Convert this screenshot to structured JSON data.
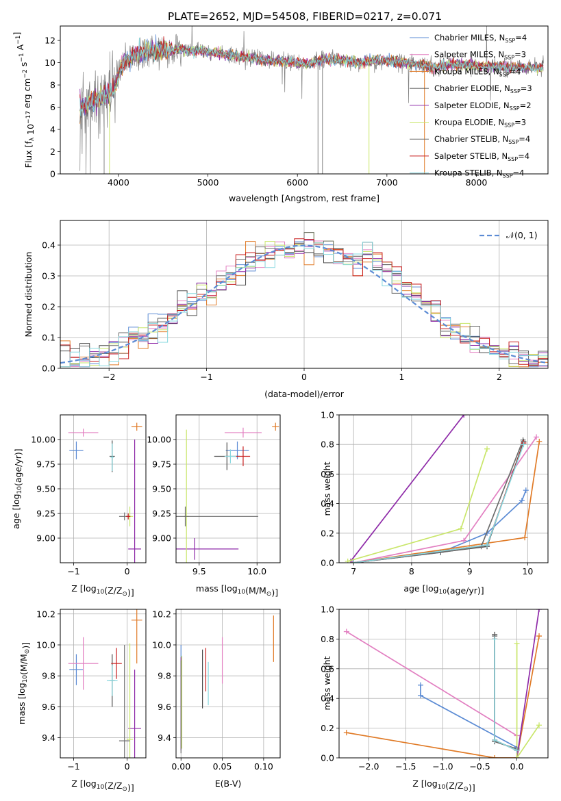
{
  "figure": {
    "title": "PLATE=2652, MJD=54508, FIBERID=0217, z=0.071"
  },
  "colors": {
    "Chabrier MILES": "#5b8bd4",
    "Salpeter MILES": "#e27fc1",
    "Kroupa MILES": "#e07a26",
    "Chabrier ELODIE": "#4d4d4d",
    "Salpeter ELODIE": "#8e2aa8",
    "Kroupa ELODIE": "#c9e66a",
    "Chabrier STELIB": "#6d6d6d",
    "Salpeter STELIB": "#c81e1e",
    "Kroupa STELIB": "#86d8df",
    "gaussian": "#5b8bd4",
    "data": "#808080"
  },
  "chart_data": [
    {
      "id": "spectrum",
      "type": "line",
      "title": "PLATE=2652, MJD=54508, FIBERID=0217, z=0.071",
      "xlabel": "wavelength [Angstrom, rest frame]",
      "ylabel": "Flux [f_λ 10^-17 erg cm^-2 s^-1 A^-1]",
      "xlim": [
        3350,
        8800
      ],
      "ylim": [
        0,
        13.3
      ],
      "xticks": [
        4000,
        5000,
        6000,
        7000,
        8000
      ],
      "yticks": [
        0,
        2,
        4,
        6,
        8,
        10,
        12
      ],
      "grid": false,
      "legend_position": "top-right",
      "legend": [
        {
          "label": "Chabrier MILES, N",
          "sub": "SSP",
          "suffix": "=4",
          "model": "Chabrier MILES"
        },
        {
          "label": "Salpeter MILES, N",
          "sub": "SSP",
          "suffix": "=3",
          "model": "Salpeter MILES"
        },
        {
          "label": "Kroupa MILES, N",
          "sub": "SSP",
          "suffix": "=4",
          "model": "Kroupa MILES"
        },
        {
          "label": "Chabrier ELODIE, N",
          "sub": "SSP",
          "suffix": "=3",
          "model": "Chabrier ELODIE"
        },
        {
          "label": "Salpeter ELODIE, N",
          "sub": "SSP",
          "suffix": "=2",
          "model": "Salpeter ELODIE"
        },
        {
          "label": "Kroupa ELODIE, N",
          "sub": "SSP",
          "suffix": "=3",
          "model": "Kroupa ELODIE"
        },
        {
          "label": "Chabrier STELIB, N",
          "sub": "SSP",
          "suffix": "=4",
          "model": "Chabrier STELIB"
        },
        {
          "label": "Salpeter STELIB, N",
          "sub": "SSP",
          "suffix": "=4",
          "model": "Salpeter STELIB"
        },
        {
          "label": "Kroupa STELIB, N",
          "sub": "SSP",
          "suffix": "=4",
          "model": "Kroupa STELIB"
        }
      ],
      "continuum": [
        [
          3570,
          6.0
        ],
        [
          3650,
          6.3
        ],
        [
          3800,
          6.7
        ],
        [
          3950,
          7.6
        ],
        [
          4050,
          10.0
        ],
        [
          4150,
          10.6
        ],
        [
          4300,
          11.0
        ],
        [
          4500,
          11.1
        ],
        [
          4700,
          11.2
        ],
        [
          4900,
          11.0
        ],
        [
          5100,
          10.9
        ],
        [
          5300,
          10.6
        ],
        [
          5500,
          10.4
        ],
        [
          5700,
          10.2
        ],
        [
          5900,
          10.1
        ],
        [
          6100,
          9.9
        ],
        [
          6300,
          10.3
        ],
        [
          6500,
          10.2
        ],
        [
          6700,
          10.0
        ],
        [
          6900,
          10.2
        ],
        [
          7100,
          10.1
        ],
        [
          7300,
          9.9
        ],
        [
          7500,
          9.6
        ],
        [
          7700,
          9.8
        ],
        [
          7900,
          9.8
        ],
        [
          8100,
          9.7
        ],
        [
          8300,
          9.6
        ],
        [
          8500,
          9.6
        ],
        [
          8750,
          9.5
        ]
      ],
      "drops": [
        {
          "x": 3900,
          "model": "Kroupa ELODIE"
        },
        {
          "x": 6800,
          "model": "Kroupa ELODIE"
        },
        {
          "x": 7420,
          "model": "Kroupa MILES"
        },
        {
          "x": 6230,
          "model": "data"
        },
        {
          "x": 6280,
          "model": "data"
        },
        {
          "x": 3840,
          "model": "data"
        }
      ]
    },
    {
      "id": "residuals",
      "type": "histogram",
      "xlabel": "(data-model)/error",
      "ylabel": "Normed distribution",
      "xlim": [
        -2.5,
        2.5
      ],
      "ylim": [
        0,
        0.48
      ],
      "xticks": [
        -2,
        -1,
        0,
        1,
        2
      ],
      "yticks": [
        0.0,
        0.1,
        0.2,
        0.3,
        0.4
      ],
      "grid": true,
      "legend_position": "top-right",
      "legend": [
        {
          "label": "𝒩(0, 1)",
          "style": "dashed",
          "model": "gaussian"
        }
      ],
      "gaussian": {
        "mean": 0,
        "sigma": 1
      }
    },
    {
      "id": "z-age",
      "type": "scatter",
      "xlabel": "Z [log10(Z/Z⊙)]",
      "ylabel": "age  [log10(age/yr)]",
      "xlim": [
        -1.25,
        0.35
      ],
      "ylim": [
        8.75,
        10.25
      ],
      "xticks": [
        -1,
        0
      ],
      "yticks": [
        9.0,
        9.25,
        9.5,
        9.75,
        10.0
      ],
      "grid": true,
      "points": [
        {
          "model": "Chabrier MILES",
          "x": -0.95,
          "y": 9.89,
          "xerr": 0.13,
          "yerr": 0.09
        },
        {
          "model": "Salpeter MILES",
          "x": -0.82,
          "y": 10.07,
          "xerr": 0.28,
          "yerr": 0.04
        },
        {
          "model": "Kroupa MILES",
          "x": 0.18,
          "y": 10.13,
          "xerr": 0.1,
          "yerr": 0.04
        },
        {
          "model": "Chabrier ELODIE",
          "x": -0.28,
          "y": 9.83,
          "xerr": 0.05,
          "yerr": 0.16
        },
        {
          "model": "Salpeter ELODIE",
          "x": 0.14,
          "y": 8.89,
          "xerr": 0.12,
          "yerr": 1.11
        },
        {
          "model": "Kroupa ELODIE",
          "x": 0.05,
          "y": 9.22,
          "xerr": 0.06,
          "yerr": 0.1
        },
        {
          "model": "Chabrier STELIB",
          "x": -0.05,
          "y": 9.22,
          "xerr": 0.1,
          "yerr": 0.04
        },
        {
          "model": "Salpeter STELIB",
          "x": 0.02,
          "y": 9.22,
          "xerr": 0.04,
          "yerr": 0.03
        },
        {
          "model": "Kroupa STELIB",
          "x": -0.28,
          "y": 9.82,
          "xerr": 0.03,
          "yerr": 0.14
        }
      ]
    },
    {
      "id": "mass-age",
      "type": "scatter",
      "xlabel": "mass [log10(M/M⊙)]",
      "ylabel": "",
      "xlim": [
        9.3,
        10.2
      ],
      "ylim": [
        8.75,
        10.25
      ],
      "xticks": [
        9.5,
        10.0
      ],
      "yticks": [
        9.0,
        9.25,
        9.5,
        9.75,
        10.0
      ],
      "grid": true,
      "points": [
        {
          "model": "Chabrier MILES",
          "x": 9.83,
          "y": 9.89,
          "xerr": 0.1,
          "yerr": 0.09
        },
        {
          "model": "Salpeter MILES",
          "x": 9.88,
          "y": 10.07,
          "xerr": 0.16,
          "yerr": 0.05
        },
        {
          "model": "Kroupa MILES",
          "x": 10.16,
          "y": 10.13,
          "xerr": 0.03,
          "yerr": 0.04
        },
        {
          "model": "Chabrier ELODIE",
          "x": 9.74,
          "y": 9.83,
          "xerr": 0.11,
          "yerr": 0.14
        },
        {
          "model": "Salpeter ELODIE",
          "x": 9.46,
          "y": 8.89,
          "xerr": 0.38,
          "yerr": 0.11
        },
        {
          "model": "Kroupa ELODIE",
          "x": 9.39,
          "y": 9.22,
          "xerr": 0.02,
          "yerr": 0.88
        },
        {
          "model": "Chabrier STELIB",
          "x": 9.38,
          "y": 9.22,
          "xerr": 0.63,
          "yerr": 0.1
        },
        {
          "model": "Salpeter STELIB",
          "x": 9.88,
          "y": 9.83,
          "xerr": 0.06,
          "yerr": 0.1
        },
        {
          "model": "Kroupa STELIB",
          "x": 9.77,
          "y": 9.83,
          "xerr": 0.05,
          "yerr": 0.07
        }
      ]
    },
    {
      "id": "age-weight",
      "type": "line",
      "xlabel": "age  [log10(age/yr)]",
      "ylabel": "mass weight",
      "xlim": [
        6.75,
        10.35
      ],
      "ylim": [
        0,
        1.0
      ],
      "xticks": [
        7,
        8,
        9,
        10
      ],
      "yticks": [
        0.0,
        0.2,
        0.4,
        0.6,
        0.8,
        1.0
      ],
      "grid": true,
      "series": [
        {
          "model": "Chabrier MILES",
          "x": [
            7.0,
            8.5,
            9.3,
            9.9,
            9.97
          ],
          "y": [
            0.0,
            0.07,
            0.2,
            0.42,
            0.49
          ]
        },
        {
          "model": "Salpeter MILES",
          "x": [
            7.0,
            8.9,
            10.15
          ],
          "y": [
            0.0,
            0.15,
            0.85
          ]
        },
        {
          "model": "Kroupa MILES",
          "x": [
            7.0,
            9.95,
            10.2
          ],
          "y": [
            0.0,
            0.17,
            0.82
          ]
        },
        {
          "model": "Chabrier ELODIE",
          "x": [
            7.0,
            9.3,
            9.93
          ],
          "y": [
            0.0,
            0.11,
            0.82
          ]
        },
        {
          "model": "Salpeter ELODIE",
          "x": [
            6.95,
            8.9
          ],
          "y": [
            0.01,
            1.0
          ]
        },
        {
          "model": "Kroupa ELODIE",
          "x": [
            6.9,
            8.85,
            9.3
          ],
          "y": [
            0.01,
            0.23,
            0.77
          ]
        },
        {
          "model": "Chabrier STELIB",
          "x": [
            7.0,
            8.5,
            9.2,
            9.92
          ],
          "y": [
            0.0,
            0.07,
            0.11,
            0.83
          ]
        },
        {
          "model": "Salpeter STELIB",
          "x": [
            7.0,
            9.3,
            9.93
          ],
          "y": [
            0.0,
            0.12,
            0.81
          ]
        },
        {
          "model": "Kroupa STELIB",
          "x": [
            7.0,
            9.3,
            9.93
          ],
          "y": [
            0.0,
            0.12,
            0.8
          ]
        }
      ]
    },
    {
      "id": "z-mass",
      "type": "scatter",
      "xlabel": "Z [log10(Z/Z⊙)]",
      "ylabel": "mass [log10(M/M⊙)]",
      "xlim": [
        -1.25,
        0.35
      ],
      "ylim": [
        9.27,
        10.23
      ],
      "xticks": [
        -1,
        0
      ],
      "yticks": [
        9.4,
        9.6,
        9.8,
        10.0,
        10.2
      ],
      "grid": true,
      "points": [
        {
          "model": "Chabrier MILES",
          "x": -0.95,
          "y": 9.84,
          "xerr": 0.13,
          "yerr": 0.1
        },
        {
          "model": "Salpeter MILES",
          "x": -0.82,
          "y": 9.88,
          "xerr": 0.28,
          "yerr": 0.17
        },
        {
          "model": "Kroupa MILES",
          "x": 0.18,
          "y": 10.16,
          "xerr": 0.1,
          "yerr": 0.28
        },
        {
          "model": "Chabrier ELODIE",
          "x": -0.28,
          "y": 9.77,
          "xerr": 0.05,
          "yerr": 0.17
        },
        {
          "model": "Salpeter ELODIE",
          "x": 0.14,
          "y": 9.46,
          "xerr": 0.12,
          "yerr": 0.38
        },
        {
          "model": "Kroupa ELODIE",
          "x": 0.05,
          "y": 9.39,
          "xerr": 0.06,
          "yerr": 0.62
        },
        {
          "model": "Chabrier STELIB",
          "x": -0.05,
          "y": 9.38,
          "xerr": 0.1,
          "yerr": 0.62
        },
        {
          "model": "Salpeter STELIB",
          "x": -0.2,
          "y": 9.88,
          "xerr": 0.1,
          "yerr": 0.1
        },
        {
          "model": "Kroupa STELIB",
          "x": -0.28,
          "y": 9.77,
          "xerr": 0.1,
          "yerr": 0.1
        }
      ]
    },
    {
      "id": "ebv-mass",
      "type": "scatter",
      "xlabel": "E(B-V)",
      "ylabel": "",
      "xlim": [
        -0.006,
        0.12
      ],
      "ylim": [
        9.27,
        10.23
      ],
      "xticks": [
        0.0,
        0.05,
        0.1
      ],
      "yticks": [
        9.4,
        9.6,
        9.8,
        10.0,
        10.2
      ],
      "grid": true,
      "points": [
        {
          "model": "Chabrier MILES",
          "x": 0.0,
          "y": 9.9,
          "xerr": 0.0,
          "yerr": 0.1
        },
        {
          "model": "Salpeter MILES",
          "x": 0.05,
          "y": 9.9,
          "xerr": 0.0,
          "yerr": 0.15
        },
        {
          "model": "Kroupa MILES",
          "x": 0.112,
          "y": 10.04,
          "xerr": 0.0,
          "yerr": 0.15
        },
        {
          "model": "Chabrier ELODIE",
          "x": 0.026,
          "y": 9.78,
          "xerr": 0.0,
          "yerr": 0.19
        },
        {
          "model": "Salpeter ELODIE",
          "x": 0.0,
          "y": 9.62,
          "xerr": 0.0,
          "yerr": 0.3
        },
        {
          "model": "Kroupa ELODIE",
          "x": 0.001,
          "y": 9.63,
          "xerr": 0.0,
          "yerr": 0.3
        },
        {
          "model": "Chabrier STELIB",
          "x": 0.0,
          "y": 9.6,
          "xerr": 0.0,
          "yerr": 0.3
        },
        {
          "model": "Salpeter STELIB",
          "x": 0.03,
          "y": 9.84,
          "xerr": 0.0,
          "yerr": 0.14
        },
        {
          "model": "Kroupa STELIB",
          "x": 0.033,
          "y": 9.75,
          "xerr": 0.0,
          "yerr": 0.14
        }
      ]
    },
    {
      "id": "z-weight",
      "type": "line",
      "xlabel": "Z [log10(Z/Z⊙)]",
      "ylabel": "mass weight",
      "xlim": [
        -2.4,
        0.42
      ],
      "ylim": [
        0,
        1.0
      ],
      "xticks": [
        -2.0,
        -1.5,
        -1.0,
        -0.5,
        0.0
      ],
      "yticks": [
        0.0,
        0.2,
        0.4,
        0.6,
        0.8,
        1.0
      ],
      "grid": true,
      "series": [
        {
          "model": "Chabrier MILES",
          "x": [
            -1.3,
            -1.3,
            0.0
          ],
          "y": [
            0.49,
            0.42,
            0.07
          ]
        },
        {
          "model": "Salpeter MILES",
          "x": [
            -2.3,
            0.0,
            0.0
          ],
          "y": [
            0.85,
            0.15,
            0.0
          ]
        },
        {
          "model": "Kroupa MILES",
          "x": [
            -2.3,
            -0.3,
            0.0,
            0.3
          ],
          "y": [
            0.17,
            0.0,
            0.0,
            0.82
          ]
        },
        {
          "model": "Chabrier ELODIE",
          "x": [
            -0.3,
            -0.3,
            0.0
          ],
          "y": [
            0.83,
            0.11,
            0.06
          ]
        },
        {
          "model": "Salpeter ELODIE",
          "x": [
            0.0,
            0.3
          ],
          "y": [
            0.0,
            1.0
          ]
        },
        {
          "model": "Kroupa ELODIE",
          "x": [
            0.0,
            0.0,
            0.3
          ],
          "y": [
            0.77,
            0.0,
            0.22
          ]
        },
        {
          "model": "Chabrier STELIB",
          "x": [
            -0.3,
            -0.3,
            0.0
          ],
          "y": [
            0.82,
            0.11,
            0.06
          ]
        },
        {
          "model": "Salpeter STELIB",
          "x": [
            -0.3,
            -0.3,
            0.0
          ],
          "y": [
            0.8,
            0.12,
            0.05
          ]
        },
        {
          "model": "Kroupa STELIB",
          "x": [
            -0.3,
            -0.3,
            0.0
          ],
          "y": [
            0.8,
            0.12,
            0.05
          ]
        }
      ]
    }
  ]
}
